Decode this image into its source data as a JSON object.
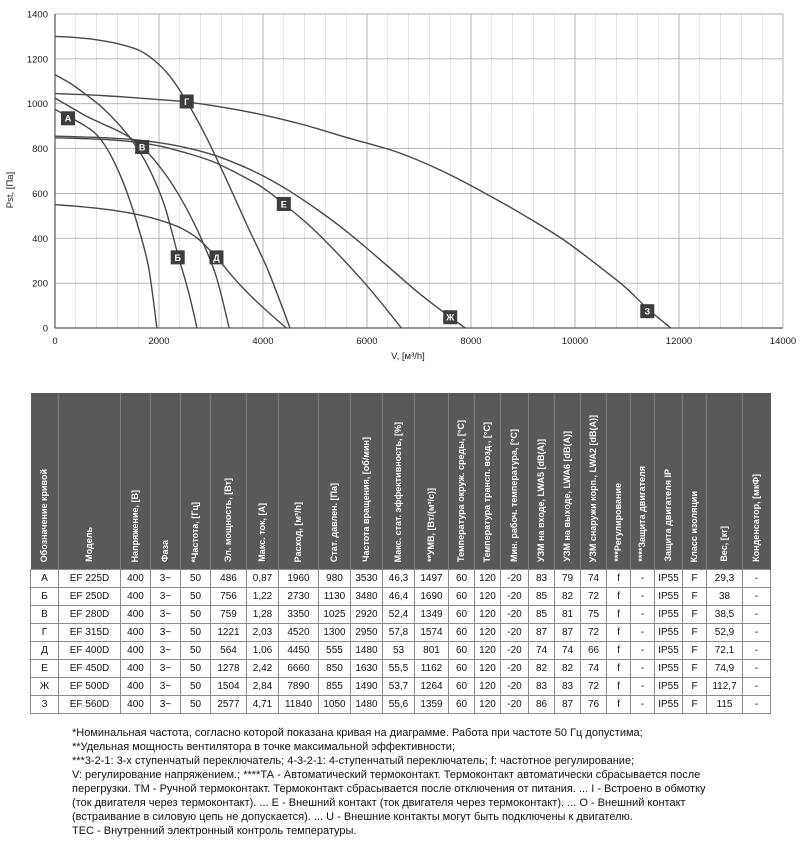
{
  "chart_data": {
    "type": "line",
    "title": "",
    "xlabel": "V, [м³/h]",
    "ylabel": "Pst, [Па]",
    "xlim": [
      0,
      14000
    ],
    "ylim": [
      0,
      1400
    ],
    "x_ticks": [
      0,
      2000,
      4000,
      6000,
      8000,
      10000,
      12000,
      14000
    ],
    "y_ticks": [
      0,
      200,
      400,
      600,
      800,
      1000,
      1200,
      1400
    ],
    "x_minor_step": 400,
    "grid": "on",
    "legend_position": "labels-on-curves",
    "series": [
      {
        "name": "А",
        "model": "EF 225D",
        "label_at": [
          250,
          935
        ],
        "points": [
          [
            0,
            975
          ],
          [
            200,
            950
          ],
          [
            400,
            925
          ],
          [
            600,
            898
          ],
          [
            800,
            862
          ],
          [
            1000,
            800
          ],
          [
            1200,
            710
          ],
          [
            1400,
            595
          ],
          [
            1600,
            450
          ],
          [
            1800,
            270
          ],
          [
            1960,
            0
          ]
        ]
      },
      {
        "name": "Б",
        "model": "EF 250D",
        "label_at": [
          2360,
          315
        ],
        "points": [
          [
            0,
            1130
          ],
          [
            300,
            1090
          ],
          [
            600,
            1040
          ],
          [
            900,
            985
          ],
          [
            1200,
            915
          ],
          [
            1500,
            830
          ],
          [
            1800,
            715
          ],
          [
            2100,
            550
          ],
          [
            2360,
            330
          ],
          [
            2570,
            160
          ],
          [
            2730,
            0
          ]
        ]
      },
      {
        "name": "В",
        "model": "EF 280D",
        "label_at": [
          1676,
          807
        ],
        "points": [
          [
            0,
            1025
          ],
          [
            300,
            985
          ],
          [
            600,
            945
          ],
          [
            900,
            912
          ],
          [
            1200,
            880
          ],
          [
            1450,
            848
          ],
          [
            1676,
            807
          ],
          [
            1900,
            752
          ],
          [
            2200,
            660
          ],
          [
            2500,
            545
          ],
          [
            2800,
            405
          ],
          [
            3100,
            230
          ],
          [
            3350,
            0
          ]
        ]
      },
      {
        "name": "Г",
        "model": "EF 315D",
        "label_at": [
          2533,
          1010
        ],
        "points": [
          [
            0,
            1300
          ],
          [
            400,
            1295
          ],
          [
            800,
            1285
          ],
          [
            1200,
            1268
          ],
          [
            1600,
            1240
          ],
          [
            1900,
            1195
          ],
          [
            2200,
            1125
          ],
          [
            2533,
            1010
          ],
          [
            2900,
            855
          ],
          [
            3300,
            660
          ],
          [
            3700,
            455
          ],
          [
            4100,
            255
          ],
          [
            4520,
            0
          ]
        ]
      },
      {
        "name": "Д",
        "model": "EF 400D",
        "label_at": [
          3105,
          315
        ],
        "points": [
          [
            0,
            550
          ],
          [
            400,
            543
          ],
          [
            800,
            534
          ],
          [
            1200,
            522
          ],
          [
            1600,
            505
          ],
          [
            2000,
            482
          ],
          [
            2400,
            448
          ],
          [
            2750,
            398
          ],
          [
            3105,
            315
          ],
          [
            3450,
            220
          ],
          [
            3800,
            135
          ],
          [
            4150,
            60
          ],
          [
            4450,
            0
          ]
        ]
      },
      {
        "name": "Е",
        "model": "EF 450D",
        "label_at": [
          4400,
          553
        ],
        "points": [
          [
            0,
            848
          ],
          [
            500,
            845
          ],
          [
            1000,
            840
          ],
          [
            1500,
            830
          ],
          [
            2000,
            812
          ],
          [
            2500,
            782
          ],
          [
            3000,
            745
          ],
          [
            3500,
            690
          ],
          [
            4000,
            625
          ],
          [
            4400,
            553
          ],
          [
            4900,
            455
          ],
          [
            5400,
            340
          ],
          [
            5900,
            215
          ],
          [
            6300,
            105
          ],
          [
            6660,
            0
          ]
        ]
      },
      {
        "name": "Ж",
        "model": "EF 500D",
        "label_at": [
          7600,
          48
        ],
        "points": [
          [
            0,
            855
          ],
          [
            500,
            852
          ],
          [
            1000,
            848
          ],
          [
            1500,
            840
          ],
          [
            2000,
            826
          ],
          [
            2500,
            805
          ],
          [
            3000,
            775
          ],
          [
            3500,
            732
          ],
          [
            4000,
            678
          ],
          [
            4500,
            612
          ],
          [
            5000,
            535
          ],
          [
            5500,
            450
          ],
          [
            6000,
            355
          ],
          [
            6500,
            255
          ],
          [
            7000,
            155
          ],
          [
            7600,
            48
          ],
          [
            7890,
            0
          ]
        ]
      },
      {
        "name": "З",
        "model": "EF 560D",
        "label_at": [
          11390,
          75
        ],
        "points": [
          [
            0,
            1045
          ],
          [
            600,
            1040
          ],
          [
            1200,
            1032
          ],
          [
            1800,
            1022
          ],
          [
            2533,
            1008
          ],
          [
            3200,
            985
          ],
          [
            4000,
            950
          ],
          [
            4800,
            905
          ],
          [
            5600,
            850
          ],
          [
            6570,
            785
          ],
          [
            7400,
            705
          ],
          [
            8200,
            610
          ],
          [
            9000,
            505
          ],
          [
            9800,
            390
          ],
          [
            10600,
            250
          ],
          [
            11000,
            175
          ],
          [
            11400,
            85
          ],
          [
            11840,
            0
          ]
        ]
      }
    ]
  },
  "table": {
    "columns": [
      "Обозначение кривой",
      "Модель",
      "Напряжение, [В]",
      "Фаза",
      "*Частота, [Гц]",
      "Эл. мощность, [Вт]",
      "Макс. ток, [А]",
      "Расход, [м³/h]",
      "Стат. давлен. [Па]",
      "Частота вращения, [об/мин]",
      "Макс. стат. эффективность, [%]",
      "**УМВ, [Вт/(м³/с)]",
      "Температура окруж. среды, [°C]",
      "Температура трансп. возд., [°C]",
      "Мин. рабоч. температура, [°C]",
      "УЗМ на входе, LWA5 [dB(A)]",
      "УЗМ на выходе, LWA6 [dB(A)]",
      "УЗМ снаружи корп., LWA2 [dB(A)]",
      "***Регулирование",
      "****Защита двигателя",
      "Защита двигателя IP",
      "Класс изоляции",
      "Вес, [кг]",
      "Конденсатор, [мкФ]"
    ],
    "rows": [
      [
        "А",
        "EF 225D",
        "400",
        "3~",
        "50",
        "486",
        "0,87",
        "1960",
        "980",
        "3530",
        "46,3",
        "1497",
        "60",
        "120",
        "-20",
        "83",
        "79",
        "74",
        "f",
        "-",
        "IP55",
        "F",
        "29,3",
        "-"
      ],
      [
        "Б",
        "EF 250D",
        "400",
        "3~",
        "50",
        "756",
        "1,22",
        "2730",
        "1130",
        "3480",
        "46,4",
        "1690",
        "60",
        "120",
        "-20",
        "85",
        "82",
        "72",
        "f",
        "-",
        "IP55",
        "F",
        "38",
        "-"
      ],
      [
        "В",
        "EF 280D",
        "400",
        "3~",
        "50",
        "759",
        "1,28",
        "3350",
        "1025",
        "2920",
        "52,4",
        "1349",
        "60",
        "120",
        "-20",
        "85",
        "81",
        "75",
        "f",
        "-",
        "IP55",
        "F",
        "38,5",
        "-"
      ],
      [
        "Г",
        "EF 315D",
        "400",
        "3~",
        "50",
        "1221",
        "2,03",
        "4520",
        "1300",
        "2950",
        "57,8",
        "1574",
        "60",
        "120",
        "-20",
        "87",
        "87",
        "72",
        "f",
        "-",
        "IP55",
        "F",
        "52,9",
        "-"
      ],
      [
        "Д",
        "EF 400D",
        "400",
        "3~",
        "50",
        "564",
        "1,06",
        "4450",
        "555",
        "1480",
        "53",
        "801",
        "60",
        "120",
        "-20",
        "74",
        "74",
        "66",
        "f",
        "-",
        "IP55",
        "F",
        "72,1",
        "-"
      ],
      [
        "Е",
        "EF 450D",
        "400",
        "3~",
        "50",
        "1278",
        "2,42",
        "6660",
        "850",
        "1630",
        "55,5",
        "1162",
        "60",
        "120",
        "-20",
        "82",
        "82",
        "74",
        "f",
        "-",
        "IP55",
        "F",
        "74,9",
        "-"
      ],
      [
        "Ж",
        "EF 500D",
        "400",
        "3~",
        "50",
        "1504",
        "2,84",
        "7890",
        "855",
        "1490",
        "53,7",
        "1264",
        "60",
        "120",
        "-20",
        "83",
        "83",
        "72",
        "f",
        "-",
        "IP55",
        "F",
        "112,7",
        "-"
      ],
      [
        "З",
        "EF 560D",
        "400",
        "3~",
        "50",
        "2577",
        "4,71",
        "11840",
        "1050",
        "1480",
        "55,6",
        "1359",
        "60",
        "120",
        "-20",
        "86",
        "87",
        "76",
        "f",
        "-",
        "IP55",
        "F",
        "115",
        "-"
      ]
    ]
  },
  "footnotes": {
    "text": "*Номинальная частота, согласно которой показана кривая на диаграмме. Работа при частоте 50 Гц допустима;\n**Удельная мощность вентилятора в точке максимальной эффективности;\n***3-2-1: 3-х ступенчатый переключатель; 4-3-2-1: 4-ступенчатый переключатель; f: частотное регулирование;\nV: регулирование напряжением.; ****ТА - Автоматический термоконтакт. Термоконтакт автоматически сбрасывается после\nперегрузки. ТМ - Ручной термоконтакт. Термоконтакт сбрасывается после отключения от питания. ... I - Встроено в обмотку\n(ток двигателя через термоконтакт). ... Е - Внешний контакт (ток двигателя через термоконтакт). ... О - Внешний контакт\n(встраивание в силовую цепь не допускается). ... U - Внешние контакты могут быть подключены к двигателю.\nТЕС - Внутренний электронный контроль температуры."
  },
  "colors": {
    "curve": "#48484a",
    "curve_label_box": "#3d3d3f",
    "curve_label_text": "#ffffff",
    "grid_major": "#aeaeae",
    "grid_minor": "#dadada",
    "axis": "#555555",
    "table_header_bg": "#58595b",
    "table_header_text": "#ffffff",
    "table_border": "#8c8c8c"
  }
}
